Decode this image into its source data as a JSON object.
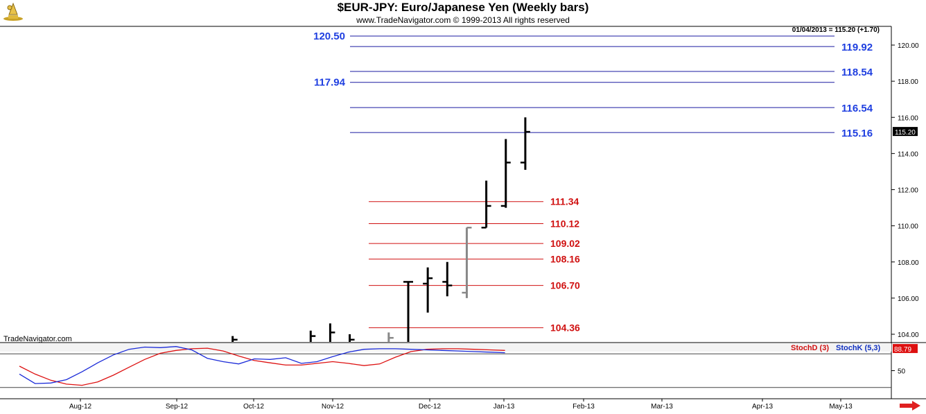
{
  "header": {
    "title": "$EUR-JPY:  Euro/Japanese Yen  (Weekly bars)",
    "copyright": "www.TradeNavigator.com © 1999-2013 All rights reserved",
    "last_info": "01/04/2013 = 115.20 (+1.70)",
    "watermark": "TradeNavigator.com"
  },
  "colors": {
    "resistance": "#1a1aa0",
    "resistance_label": "#1f3fe0",
    "support": "#d01010",
    "price_bar": "#000000",
    "recent_bar": "#888888",
    "stoch_d": "#dd1010",
    "stoch_k": "#1a2ad8",
    "price_tag_bg": "#000000",
    "stoch_tag_bg": "#dd1010"
  },
  "icons": {
    "logo": "trade-navigator-logo-icon",
    "scroll": "scroll-right-arrow-icon"
  },
  "chart_data": [
    {
      "type": "line",
      "title": "$EUR-JPY:  Euro/Japanese Yen  (Weekly bars)",
      "ylim": [
        103.4,
        121.8
      ],
      "yticks": [
        "104.00",
        "106.00",
        "108.00",
        "110.00",
        "112.00",
        "114.00",
        "116.00",
        "118.00",
        "120.00"
      ],
      "xticks": [
        "Aug-12",
        "Sep-12",
        "Oct-12",
        "Nov-12",
        "Dec-12",
        "Jan-13",
        "Feb-13",
        "Mar-13",
        "Apr-13",
        "May-13"
      ],
      "last_price": "115.20",
      "bars": [
        {
          "week": 11,
          "high": 103.9,
          "low": 103.5,
          "close": 103.7
        },
        {
          "week": 15,
          "high": 104.2,
          "low": 103.5,
          "close": 103.9
        },
        {
          "week": 16,
          "high": 104.6,
          "low": 103.5,
          "close": 104.1
        },
        {
          "week": 17,
          "high": 104.0,
          "low": 103.5,
          "close": 103.7
        },
        {
          "week": 19,
          "high": 104.1,
          "low": 103.5,
          "close": 103.8
        },
        {
          "week": 20,
          "open": 106.9,
          "high": 106.9,
          "low": 103.5,
          "close": 106.9
        },
        {
          "week": 21,
          "open": 106.8,
          "high": 107.7,
          "low": 105.2,
          "close": 107.1
        },
        {
          "week": 22,
          "open": 106.9,
          "high": 108.0,
          "low": 106.1,
          "close": 106.7
        },
        {
          "week": 23,
          "open": 106.3,
          "high": 109.9,
          "low": 106.0,
          "close": 109.9
        },
        {
          "week": 24,
          "open": 109.9,
          "high": 112.5,
          "low": 109.9,
          "close": 111.1
        },
        {
          "week": 25,
          "open": 111.1,
          "high": 114.8,
          "low": 111.0,
          "close": 113.5
        },
        {
          "week": 26,
          "open": 113.5,
          "high": 116.0,
          "low": 113.1,
          "close": 115.2
        }
      ],
      "resistance_levels": [
        "120.50",
        "119.92",
        "118.54",
        "117.94",
        "116.54",
        "115.16"
      ],
      "support_levels": [
        "111.34",
        "110.12",
        "109.02",
        "108.16",
        "106.70",
        "104.36"
      ]
    },
    {
      "type": "line",
      "ylim": [
        0,
        100
      ],
      "ytick": "50",
      "last_value": "88.79",
      "series": [
        {
          "name": "StochD (3)",
          "values": [
            58,
            44,
            33,
            26,
            24,
            30,
            42,
            56,
            70,
            81,
            86,
            89,
            90,
            85,
            76,
            68,
            64,
            60,
            60,
            63,
            66,
            63,
            59,
            62,
            74,
            84,
            88,
            89,
            89,
            88,
            87,
            86
          ]
        },
        {
          "name": "StochK (5,3)",
          "values": [
            44,
            27,
            28,
            34,
            48,
            64,
            78,
            88,
            92,
            91,
            93,
            87,
            72,
            66,
            62,
            71,
            70,
            73,
            63,
            66,
            75,
            83,
            88,
            89,
            89,
            88,
            87,
            86,
            85,
            84,
            83,
            82
          ]
        }
      ]
    }
  ]
}
